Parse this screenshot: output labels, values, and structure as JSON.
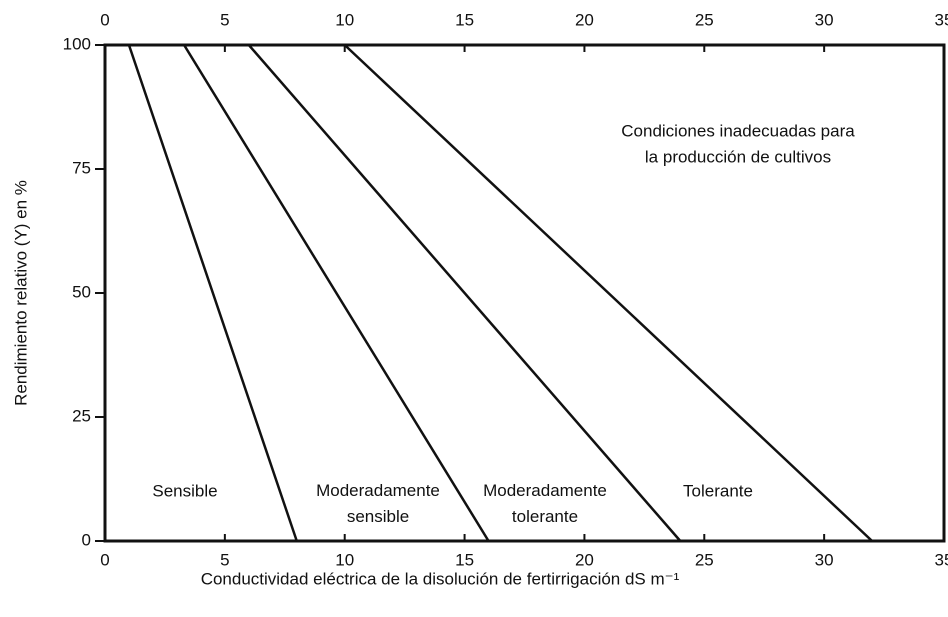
{
  "chart_data": {
    "type": "line",
    "xlabel": "Conductividad eléctrica de la disolución de fertirrigación dS m⁻¹",
    "ylabel": "Rendimiento relativo (Y) en %",
    "annotation": [
      "Condiciones inadecuadas para",
      "la producción de cultivos"
    ],
    "series": [
      {
        "name": "Sensible",
        "color": "#111111",
        "x": [
          1,
          8
        ],
        "values": [
          100,
          0
        ]
      },
      {
        "name": "Moderadamente sensible",
        "color": "#111111",
        "x": [
          3.3,
          16
        ],
        "values": [
          100,
          0
        ]
      },
      {
        "name": "Moderadamente tolerante",
        "color": "#111111",
        "x": [
          6,
          24
        ],
        "values": [
          100,
          0
        ]
      },
      {
        "name": "Tolerante",
        "color": "#111111",
        "x": [
          10,
          32
        ],
        "values": [
          100,
          0
        ]
      }
    ],
    "xlim": [
      0,
      35
    ],
    "xticks": [
      0,
      5,
      10,
      15,
      20,
      25,
      30,
      35
    ],
    "ylim": [
      0,
      100
    ],
    "yticks": [
      0,
      25,
      50,
      75,
      100
    ]
  }
}
